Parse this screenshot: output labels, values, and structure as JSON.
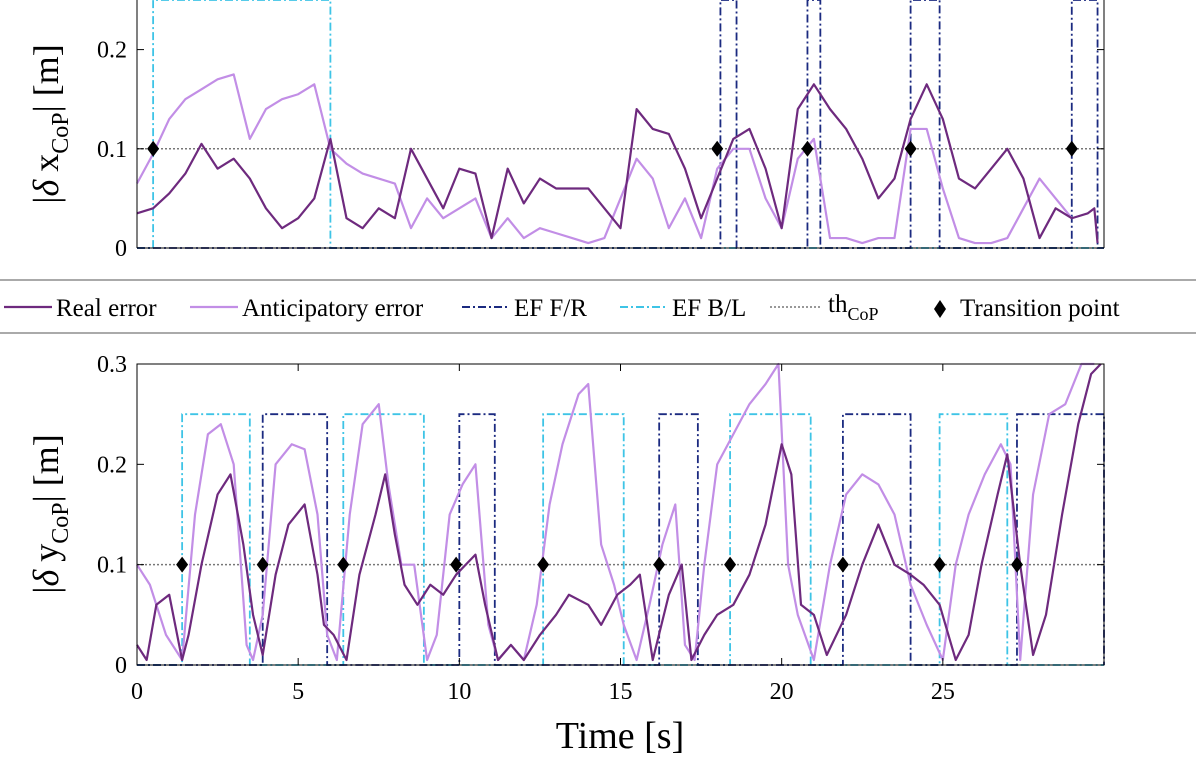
{
  "chart_data": [
    {
      "type": "line",
      "ylabel": "|δ x_CoP| [m]",
      "ylabel_parts": {
        "pre": "|",
        "greek": "δ",
        "var": "x",
        "sub": "CoP",
        "post": "| [m]"
      },
      "xlim": [
        0,
        30
      ],
      "ylim": [
        0,
        0.25
      ],
      "yticks": [
        0,
        0.1,
        0.2
      ],
      "ytick_labels": [
        "0",
        "0.1",
        "0.2"
      ],
      "threshold": 0.1,
      "series": [
        {
          "name": "Real error",
          "x": [
            0,
            0.5,
            1,
            1.5,
            2,
            2.5,
            3,
            3.5,
            4,
            4.5,
            5,
            5.5,
            6,
            6.5,
            7,
            7.5,
            8,
            8.5,
            9,
            9.5,
            10,
            10.5,
            11,
            11.5,
            12,
            12.5,
            13,
            13.5,
            14,
            14.5,
            15,
            15.5,
            16,
            16.5,
            17,
            17.5,
            18,
            18.5,
            19,
            19.5,
            20,
            20.5,
            21,
            21.5,
            22,
            22.5,
            23,
            23.5,
            24,
            24.5,
            25,
            25.5,
            26,
            26.5,
            27,
            27.5,
            28,
            28.5,
            29,
            29.5,
            29.7,
            29.8
          ],
          "y": [
            0.035,
            0.04,
            0.055,
            0.075,
            0.105,
            0.08,
            0.09,
            0.07,
            0.04,
            0.02,
            0.03,
            0.05,
            0.11,
            0.03,
            0.02,
            0.04,
            0.03,
            0.1,
            0.07,
            0.04,
            0.08,
            0.075,
            0.01,
            0.08,
            0.045,
            0.07,
            0.06,
            0.06,
            0.06,
            0.04,
            0.02,
            0.14,
            0.12,
            0.115,
            0.08,
            0.03,
            0.07,
            0.11,
            0.12,
            0.08,
            0.02,
            0.14,
            0.165,
            0.14,
            0.12,
            0.09,
            0.05,
            0.07,
            0.13,
            0.165,
            0.13,
            0.07,
            0.06,
            0.08,
            0.1,
            0.07,
            0.01,
            0.04,
            0.03,
            0.035,
            0.04,
            0.005
          ]
        },
        {
          "name": "Anticipatory error",
          "x": [
            0,
            0.5,
            1,
            1.5,
            2,
            2.5,
            3,
            3.5,
            4,
            4.5,
            5,
            5.5,
            6,
            6.5,
            7,
            7.5,
            8,
            8.5,
            9,
            9.5,
            10,
            10.5,
            11,
            11.5,
            12,
            12.5,
            13,
            13.5,
            14,
            14.5,
            15,
            15.5,
            16,
            16.5,
            17,
            17.5,
            18,
            18.5,
            19,
            19.5,
            20,
            20.5,
            21,
            21.5,
            22,
            22.5,
            23,
            23.5,
            24,
            24.5,
            25,
            25.5,
            26,
            26.5,
            27,
            27.5,
            28,
            28.5,
            29
          ],
          "y": [
            0.065,
            0.095,
            0.13,
            0.15,
            0.16,
            0.17,
            0.175,
            0.11,
            0.14,
            0.15,
            0.155,
            0.165,
            0.1,
            0.085,
            0.075,
            0.07,
            0.065,
            0.02,
            0.05,
            0.03,
            0.04,
            0.05,
            0.01,
            0.03,
            0.01,
            0.02,
            0.015,
            0.01,
            0.005,
            0.01,
            0.05,
            0.09,
            0.07,
            0.02,
            0.05,
            0.01,
            0.08,
            0.1,
            0.1,
            0.05,
            0.02,
            0.09,
            0.11,
            0.01,
            0.01,
            0.005,
            0.01,
            0.01,
            0.12,
            0.12,
            0.06,
            0.01,
            0.005,
            0.005,
            0.01,
            0.04,
            0.07,
            0.05,
            0.03
          ]
        }
      ],
      "ef_fr_pulses": [
        [
          18.1,
          18.6
        ],
        [
          20.8,
          21.2
        ],
        [
          24.0,
          24.9
        ],
        [
          29.0,
          29.8
        ]
      ],
      "ef_bl_pulses": [
        [
          0.5,
          6.0
        ]
      ],
      "transition_points": [
        [
          0.5,
          0.1
        ],
        [
          18.0,
          0.1
        ],
        [
          20.8,
          0.1
        ],
        [
          24.0,
          0.1
        ],
        [
          29.0,
          0.1
        ]
      ]
    },
    {
      "type": "line",
      "xlabel": "Time [s]",
      "ylabel": "|δ y_CoP| [m]",
      "ylabel_parts": {
        "pre": "|",
        "greek": "δ",
        "var": "y",
        "sub": "CoP",
        "post": "| [m]"
      },
      "xlim": [
        0,
        30
      ],
      "ylim": [
        0,
        0.3
      ],
      "xticks": [
        0,
        5,
        10,
        15,
        20,
        25
      ],
      "xtick_labels": [
        "0",
        "5",
        "10",
        "15",
        "20",
        "25"
      ],
      "yticks": [
        0,
        0.1,
        0.2,
        0.3
      ],
      "ytick_labels": [
        "0",
        "0.1",
        "0.2",
        "0.3"
      ],
      "threshold": 0.1,
      "series": [
        {
          "name": "Real error",
          "x": [
            0,
            0.3,
            0.6,
            1,
            1.4,
            1.6,
            2,
            2.5,
            2.9,
            3.3,
            3.6,
            3.9,
            4.3,
            4.7,
            5.2,
            5.6,
            5.8,
            6.1,
            6.5,
            6.9,
            7.4,
            7.7,
            8,
            8.3,
            8.7,
            9.1,
            9.5,
            9.9,
            10.2,
            10.5,
            10.8,
            11.2,
            11.6,
            12,
            12.5,
            13,
            13.4,
            14,
            14.4,
            14.9,
            15.3,
            15.6,
            16,
            16.5,
            16.9,
            17.2,
            17.6,
            18,
            18.5,
            19,
            19.5,
            20,
            20.3,
            20.6,
            21,
            21.4,
            22,
            22.5,
            23,
            23.5,
            24,
            24.4,
            24.9,
            25.4,
            25.8,
            26.2,
            26.7,
            27,
            27.4,
            27.8,
            28.2,
            28.7,
            29.2,
            29.6,
            29.9
          ],
          "y": [
            0.02,
            0.005,
            0.06,
            0.07,
            0.005,
            0.03,
            0.1,
            0.17,
            0.19,
            0.12,
            0.05,
            0.01,
            0.09,
            0.14,
            0.16,
            0.09,
            0.04,
            0.03,
            0.005,
            0.09,
            0.15,
            0.19,
            0.13,
            0.08,
            0.06,
            0.08,
            0.07,
            0.09,
            0.1,
            0.11,
            0.06,
            0.005,
            0.02,
            0.005,
            0.03,
            0.05,
            0.07,
            0.06,
            0.04,
            0.07,
            0.08,
            0.09,
            0.005,
            0.07,
            0.1,
            0.005,
            0.03,
            0.05,
            0.06,
            0.09,
            0.14,
            0.22,
            0.19,
            0.06,
            0.05,
            0.01,
            0.05,
            0.1,
            0.14,
            0.1,
            0.09,
            0.08,
            0.06,
            0.005,
            0.03,
            0.1,
            0.17,
            0.21,
            0.1,
            0.01,
            0.05,
            0.15,
            0.24,
            0.29,
            0.3
          ]
        },
        {
          "name": "Anticipatory error",
          "x": [
            0,
            0.4,
            0.9,
            1.4,
            1.8,
            2.2,
            2.6,
            3,
            3.4,
            3.6,
            3.9,
            4.3,
            4.8,
            5.2,
            5.6,
            5.9,
            6.2,
            6.6,
            7,
            7.5,
            7.8,
            8.2,
            8.6,
            9,
            9.3,
            9.7,
            10.1,
            10.5,
            10.9,
            11.2,
            11.6,
            12,
            12.4,
            12.8,
            13.2,
            13.7,
            14,
            14.4,
            14.8,
            15.1,
            15.5,
            15.9,
            16.3,
            16.7,
            17,
            17.3,
            17.6,
            18,
            18.5,
            19,
            19.5,
            19.9,
            20.2,
            20.5,
            21,
            21.5,
            22,
            22.5,
            23,
            23.5,
            24,
            24.5,
            25,
            25.4,
            25.8,
            26.3,
            26.8,
            27.1,
            27.4,
            27.8,
            28.3,
            28.8,
            29.3,
            29.7
          ],
          "y": [
            0.1,
            0.08,
            0.03,
            0.005,
            0.15,
            0.23,
            0.24,
            0.2,
            0.02,
            0.005,
            0.05,
            0.2,
            0.22,
            0.215,
            0.15,
            0.03,
            0.005,
            0.15,
            0.24,
            0.26,
            0.18,
            0.1,
            0.1,
            0.005,
            0.03,
            0.15,
            0.18,
            0.2,
            0.04,
            0.005,
            0.02,
            0.005,
            0.06,
            0.16,
            0.22,
            0.27,
            0.28,
            0.12,
            0.08,
            0.04,
            0.005,
            0.06,
            0.12,
            0.16,
            0.02,
            0.005,
            0.1,
            0.2,
            0.23,
            0.26,
            0.28,
            0.3,
            0.1,
            0.05,
            0.005,
            0.1,
            0.17,
            0.19,
            0.18,
            0.15,
            0.08,
            0.04,
            0.005,
            0.1,
            0.15,
            0.19,
            0.22,
            0.2,
            0.005,
            0.17,
            0.25,
            0.26,
            0.3,
            0.3
          ]
        }
      ],
      "ef_fr_pulses": [
        [
          3.9,
          5.9
        ],
        [
          10.0,
          11.1
        ],
        [
          16.2,
          17.4
        ],
        [
          21.9,
          24.0
        ],
        [
          27.3,
          30.0
        ]
      ],
      "ef_bl_pulses": [
        [
          1.4,
          3.5
        ],
        [
          6.4,
          8.9
        ],
        [
          12.6,
          15.1
        ],
        [
          18.4,
          20.9
        ],
        [
          24.9,
          27.0
        ]
      ],
      "transition_points": [
        [
          1.4,
          0.1
        ],
        [
          3.9,
          0.1
        ],
        [
          6.4,
          0.1
        ],
        [
          9.9,
          0.1
        ],
        [
          12.6,
          0.1
        ],
        [
          16.2,
          0.1
        ],
        [
          18.4,
          0.1
        ],
        [
          21.9,
          0.1
        ],
        [
          24.9,
          0.1
        ],
        [
          27.3,
          0.1
        ]
      ]
    }
  ],
  "legend": {
    "real_error": "Real error",
    "anticipatory_error": "Anticipatory error",
    "ef_fr": "EF F/R",
    "ef_bl": "EF B/L",
    "th_main": "th",
    "th_sub": "CoP",
    "transition_point": "Transition point"
  },
  "colors": {
    "real_error": "#6e2a7e",
    "anticipatory_error": "#c28ee6",
    "ef_fr": "#1b2a80",
    "ef_bl": "#3ec4e6",
    "threshold": "#777777",
    "marker": "#000000"
  },
  "ef_level": 0.25
}
